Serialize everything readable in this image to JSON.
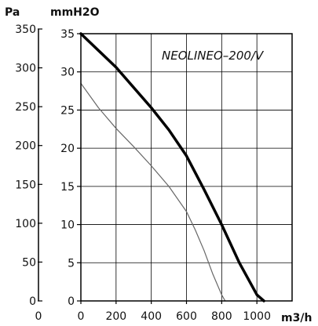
{
  "chart_data": {
    "type": "line",
    "annotation": "NEOLINEO–200/V",
    "unit_labels": {
      "pa": "Pa",
      "mmh2o": "mmH2O",
      "flow": "m3/h"
    },
    "x_ticks": [
      "0",
      "200",
      "400",
      "600",
      "800",
      "1000"
    ],
    "pa_ticks": [
      "0",
      "50",
      "100",
      "150",
      "200",
      "250",
      "300",
      "350"
    ],
    "mmh2o_ticks": [
      "0",
      "5",
      "10",
      "15",
      "20",
      "25",
      "30",
      "35"
    ],
    "xlim": [
      0,
      1200
    ],
    "ylim": [
      0,
      35
    ],
    "grid": true,
    "series": [
      {
        "values": [
          [
            0,
            35
          ],
          [
            200,
            30.6
          ],
          [
            400,
            25.3
          ],
          [
            500,
            22.4
          ],
          [
            600,
            19
          ],
          [
            700,
            14.6
          ],
          [
            800,
            10
          ],
          [
            900,
            5
          ],
          [
            1000,
            0.8
          ],
          [
            1040,
            0
          ]
        ],
        "color": "#000000",
        "style": "thick"
      },
      {
        "values": [
          [
            0,
            28.5
          ],
          [
            100,
            25.3
          ],
          [
            200,
            22.6
          ],
          [
            300,
            20.2
          ],
          [
            400,
            17.7
          ],
          [
            500,
            15
          ],
          [
            600,
            11.7
          ],
          [
            650,
            9.3
          ],
          [
            700,
            6.6
          ],
          [
            750,
            3.5
          ],
          [
            800,
            0.8
          ],
          [
            820,
            0
          ]
        ],
        "color": "#666666",
        "style": "thin"
      }
    ]
  }
}
